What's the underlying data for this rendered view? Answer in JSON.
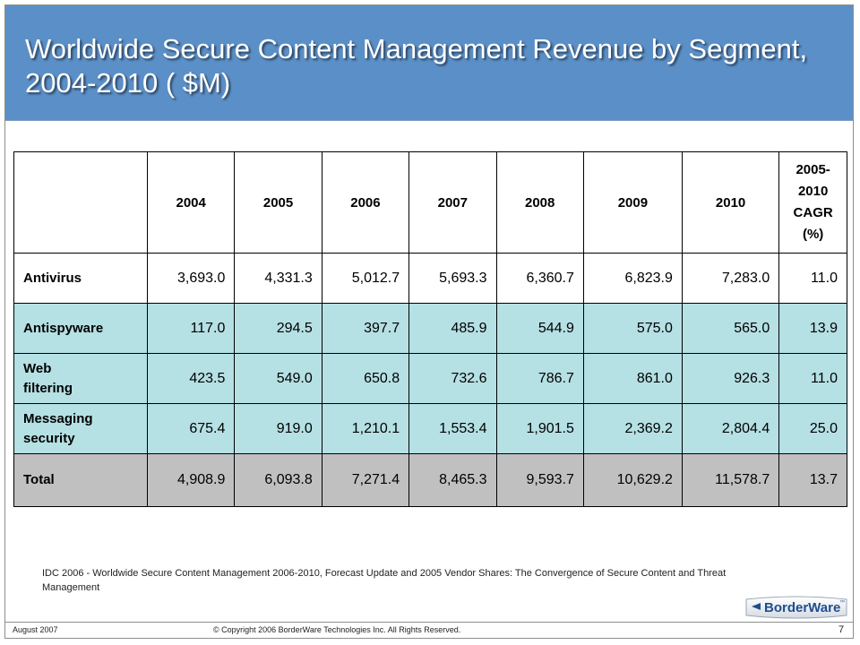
{
  "slide": {
    "title": "Worldwide Secure Content Management Revenue by Segment, 2004-2010 ( $M)",
    "page_number": "7"
  },
  "table": {
    "columns": [
      "2004",
      "2005",
      "2006",
      "2007",
      "2008",
      "2009",
      "2010"
    ],
    "cagr_header": [
      "2005-",
      "2010",
      "CAGR",
      "(%)"
    ],
    "rows": [
      {
        "label": "Antivirus",
        "label_lines": [
          "Antivirus"
        ],
        "style": "white",
        "values": [
          "3,693.0",
          "4,331.3",
          "5,012.7",
          "5,693.3",
          "6,360.7",
          "6,823.9",
          "7,283.0",
          "11.0"
        ]
      },
      {
        "label": "Antispyware",
        "label_lines": [
          "Antispyware"
        ],
        "style": "cyan",
        "values": [
          "117.0",
          "294.5",
          "397.7",
          "485.9",
          "544.9",
          "575.0",
          "565.0",
          "13.9"
        ]
      },
      {
        "label": "Web filtering",
        "label_lines": [
          "Web",
          "filtering"
        ],
        "style": "cyan",
        "values": [
          "423.5",
          "549.0",
          "650.8",
          "732.6",
          "786.7",
          "861.0",
          "926.3",
          "11.0"
        ]
      },
      {
        "label": "Messaging security",
        "label_lines": [
          "Messaging",
          "security"
        ],
        "style": "cyan",
        "values": [
          "675.4",
          "919.0",
          "1,210.1",
          "1,553.4",
          "1,901.5",
          "2,369.2",
          "2,804.4",
          "25.0"
        ]
      },
      {
        "label": "Total",
        "label_lines": [
          "Total"
        ],
        "style": "gray",
        "values": [
          "4,908.9",
          "6,093.8",
          "7,271.4",
          "8,465.3",
          "9,593.7",
          "10,629.2",
          "11,578.7",
          "13.7"
        ]
      }
    ]
  },
  "source_note": "IDC 2006 - Worldwide Secure Content Management 2006-2010,  Forecast Update and 2005 Vendor Shares: The Convergence of Secure Content and Threat Management",
  "footer": {
    "date": "August 2007",
    "copyright": "© Copyright 2006 BorderWare Technologies Inc. All Rights Reserved."
  },
  "logo": {
    "text": "BorderWare",
    "tm": "™"
  },
  "colors": {
    "title_bar": "#5b8fc7",
    "row_cyan": "#b5e0e4",
    "row_gray": "#c0c0c0",
    "logo_blue": "#1f4e8c"
  }
}
